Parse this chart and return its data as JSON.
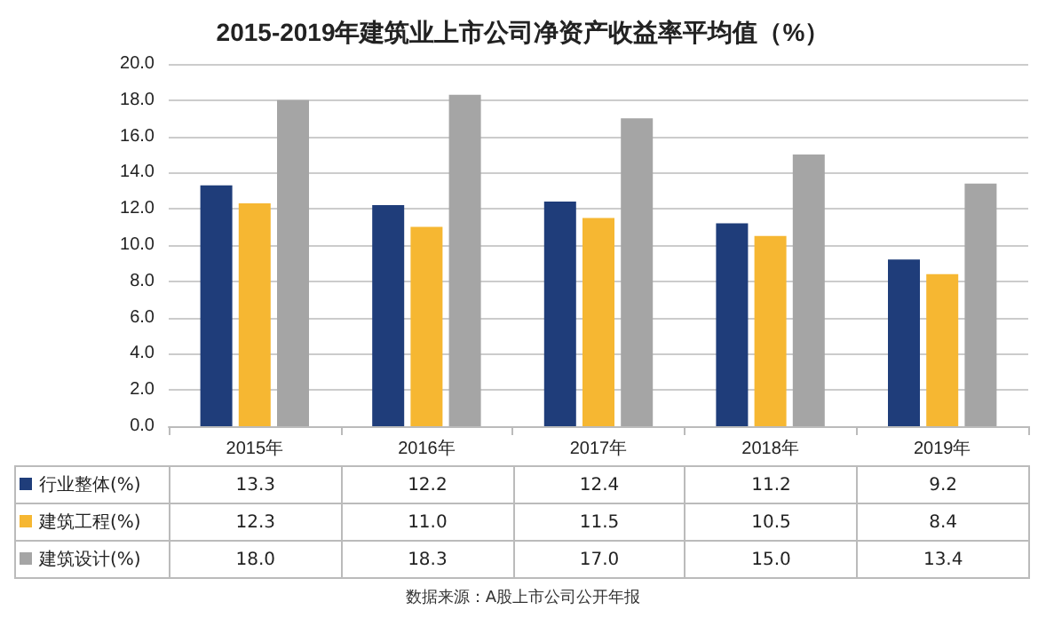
{
  "chart_data": {
    "type": "bar",
    "title": "2015-2019年建筑业上市公司净资产收益率平均值（%）",
    "categories": [
      "2015年",
      "2016年",
      "2017年",
      "2018年",
      "2019年"
    ],
    "series": [
      {
        "name": "行业整体(%)",
        "color": "#1f3d7a",
        "values": [
          13.3,
          12.2,
          12.4,
          11.2,
          9.2
        ],
        "value_labels": [
          "13.3",
          "12.2",
          "12.4",
          "11.2",
          "9.2"
        ]
      },
      {
        "name": "建筑工程(%)",
        "color": "#f6b732",
        "values": [
          12.3,
          11.0,
          11.5,
          10.5,
          8.4
        ],
        "value_labels": [
          "12.3",
          "11.0",
          "11.5",
          "10.5",
          "8.4"
        ]
      },
      {
        "name": "建筑设计(%)",
        "color": "#a5a5a5",
        "values": [
          18.0,
          18.3,
          17.0,
          15.0,
          13.4
        ],
        "value_labels": [
          "18.0",
          "18.3",
          "17.0",
          "15.0",
          "13.4"
        ]
      }
    ],
    "ylim": [
      0,
      20
    ],
    "yticks": [
      {
        "value": 0,
        "label": "0.0"
      },
      {
        "value": 2,
        "label": "2.0"
      },
      {
        "value": 4,
        "label": "4.0"
      },
      {
        "value": 6,
        "label": "6.0"
      },
      {
        "value": 8,
        "label": "8.0"
      },
      {
        "value": 10,
        "label": "10.0"
      },
      {
        "value": 12,
        "label": "12.0"
      },
      {
        "value": 14,
        "label": "14.0"
      },
      {
        "value": 16,
        "label": "16.0"
      },
      {
        "value": 18,
        "label": "18.0"
      },
      {
        "value": 20,
        "label": "20.0"
      }
    ],
    "grid": "y",
    "legend": "bottom",
    "annotations": [
      "数据来源：A股上市公司公开年报"
    ]
  }
}
